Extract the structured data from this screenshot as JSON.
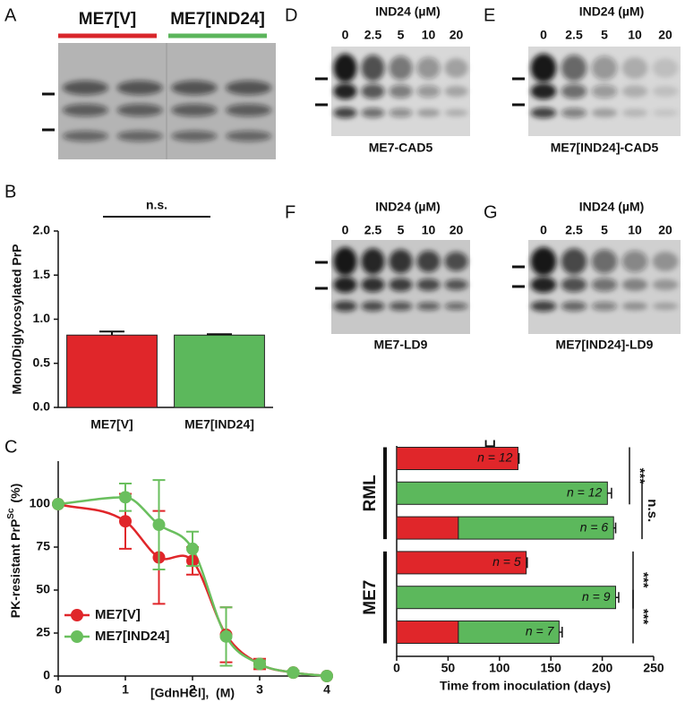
{
  "panel_labels": [
    "A",
    "B",
    "C",
    "D",
    "E",
    "F",
    "G",
    "H"
  ],
  "blots": {
    "A": {
      "groups": [
        {
          "label": "ME7[V]",
          "color": "#d9262b"
        },
        {
          "label": "ME7[IND24]",
          "color": "#5bb55b"
        }
      ]
    },
    "D": {
      "header": "IND24 (µM)",
      "lanes": [
        "0",
        "2.5",
        "5",
        "10",
        "20"
      ],
      "caption": "ME7-CAD5"
    },
    "E": {
      "header": "IND24 (µM)",
      "lanes": [
        "0",
        "2.5",
        "5",
        "10",
        "20"
      ],
      "caption": "ME7[IND24]-CAD5"
    },
    "F": {
      "header": "IND24 (µM)",
      "lanes": [
        "0",
        "2.5",
        "5",
        "10",
        "20"
      ],
      "caption": "ME7-LD9"
    },
    "G": {
      "header": "IND24 (µM)",
      "lanes": [
        "0",
        "2.5",
        "5",
        "10",
        "20"
      ],
      "caption": "ME7[IND24]-LD9"
    }
  },
  "chart_data": [
    {
      "type": "bar",
      "y_label": "Mono/Diglycosylated PrP",
      "categories": [
        "ME7[V]",
        "ME7[IND24]"
      ],
      "values": [
        0.82,
        0.82
      ],
      "errors": [
        0.04,
        0.01
      ],
      "colors": [
        "#e0262a",
        "#5cb85c"
      ],
      "annotation": "n.s.",
      "ylim": [
        0,
        2
      ],
      "yticks": [
        {
          "value": 0,
          "label": "0.0"
        },
        {
          "value": 0.5,
          "label": "0.5"
        },
        {
          "value": 1,
          "label": "1.0"
        },
        {
          "value": 1.5,
          "label": "1.5"
        },
        {
          "value": 2,
          "label": "2.0"
        }
      ]
    },
    {
      "type": "line",
      "y_label": [
        "PK-resistant PrP",
        "Sc",
        " (%)"
      ],
      "x_label": "[GdnHCl],  (M)",
      "x": [
        0,
        1,
        1.5,
        2,
        2.5,
        3,
        3.5,
        4
      ],
      "series": [
        {
          "name": "ME7[V]",
          "color": "#e0262a",
          "values": [
            100,
            90,
            69,
            67,
            24,
            7,
            2,
            0
          ],
          "errors": [
            0,
            16,
            27,
            8,
            16,
            3,
            1,
            0
          ]
        },
        {
          "name": "ME7[IND24]",
          "color": "#6abf5e",
          "values": [
            100,
            104,
            88,
            74,
            23,
            7,
            2,
            0
          ],
          "errors": [
            0,
            8,
            26,
            10,
            17,
            2,
            1,
            0
          ]
        }
      ],
      "xlim": [
        0,
        4
      ],
      "xticks": [
        0,
        1,
        2,
        3,
        4
      ],
      "ylim": [
        0,
        125
      ],
      "yticks": [
        0,
        25,
        50,
        75,
        100
      ],
      "legend": "lower left"
    },
    {
      "type": "hbar",
      "x_label": "Time from inoculation (days)",
      "groups": [
        "RML",
        "ME7"
      ],
      "series": [
        {
          "color": "#e0262a",
          "values": [
            118,
            null,
            60,
            126,
            null,
            60
          ]
        },
        {
          "color": "#5cb85c",
          "values": [
            null,
            205,
            151,
            null,
            213,
            98
          ]
        }
      ],
      "errors": [
        1,
        4,
        2,
        1,
        3,
        3
      ],
      "annotations": [
        "n = 12",
        "n = 12",
        "n = 6",
        "n = 5",
        "n = 9",
        "n = 7"
      ],
      "significance": [
        "***",
        "n.s.",
        "***",
        "***"
      ],
      "xlim": [
        0,
        250
      ],
      "xticks": [
        0,
        50,
        100,
        150,
        200,
        250
      ]
    }
  ]
}
